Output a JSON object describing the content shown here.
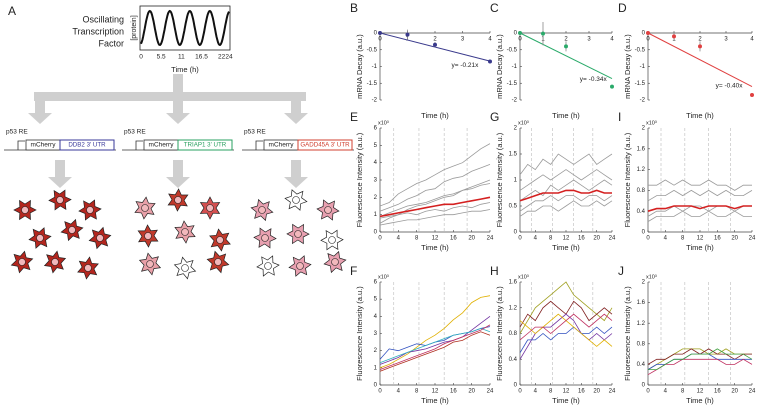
{
  "diagram": {
    "letter": "A",
    "title_lines": [
      "Oscillating",
      "Transcription",
      "Factor"
    ],
    "inset_ylabel": "[protein]",
    "inset_xlabel": "Time (h)",
    "inset_xticks": [
      0,
      5.5,
      11,
      16.5,
      22,
      24
    ],
    "constructs": [
      {
        "promoter": "p53 RE",
        "reporter": "mCherry",
        "utr": "DDB2 3' UTR",
        "color": "#3a3a9a"
      },
      {
        "promoter": "p53 RE",
        "reporter": "mCherry",
        "utr": "TRIAP1 3' UTR",
        "color": "#2aa060"
      },
      {
        "promoter": "p53 RE",
        "reporter": "mCherry",
        "utr": "GADD45A 3' UTR",
        "color": "#d04030"
      }
    ]
  },
  "chart_data": [
    {
      "type": "scatter",
      "panel": "B",
      "ylabel": "mRNA Decay (a.u.)",
      "xlabel": "Time (h)",
      "x": [
        0,
        1,
        2,
        4
      ],
      "values": [
        0,
        -0.05,
        -0.35,
        -0.85
      ],
      "errors": [
        0.05,
        0.15,
        0.08,
        0.05
      ],
      "color": "#3a3a8c",
      "fit_slope": -0.21,
      "annotation": "y= -0.21x",
      "xlim": [
        0,
        4
      ],
      "ylim": [
        -2,
        0
      ],
      "xticks": [
        0,
        1,
        2,
        3,
        4
      ],
      "yticks": [
        0,
        -0.5,
        -1,
        -1.5,
        -2
      ]
    },
    {
      "type": "scatter",
      "panel": "C",
      "ylabel": "mRNA Decay (a.u.)",
      "xlabel": "Time (h)",
      "x": [
        0,
        1,
        2,
        4
      ],
      "values": [
        0,
        -0.02,
        -0.4,
        -1.6
      ],
      "errors": [
        0.05,
        0.35,
        0.15,
        0.05
      ],
      "color": "#2aaa6a",
      "fit_slope": -0.34,
      "annotation": "y= -0.34x",
      "xlim": [
        0,
        4
      ],
      "ylim": [
        -2,
        0
      ],
      "xticks": [
        0,
        1,
        2,
        3,
        4
      ],
      "yticks": [
        0,
        -0.5,
        -1,
        -1.5,
        -2
      ]
    },
    {
      "type": "scatter",
      "panel": "D",
      "ylabel": "mRNA Decay (a.u.)",
      "xlabel": "Time (h)",
      "x": [
        0,
        1,
        2,
        4
      ],
      "values": [
        0,
        -0.1,
        -0.4,
        -1.85
      ],
      "errors": [
        0.02,
        0.1,
        0.15,
        0.05
      ],
      "color": "#e04040",
      "fit_slope": -0.4,
      "annotation": "y= -0.40x",
      "xlim": [
        0,
        4
      ],
      "ylim": [
        -2,
        0
      ],
      "xticks": [
        0,
        1,
        2,
        3,
        4
      ],
      "yticks": [
        0,
        -0.5,
        -1,
        -1.5,
        -2
      ]
    },
    {
      "type": "line",
      "panel": "E",
      "ylabel": "Fluorescence Intensity (a.u.)",
      "xlabel": "Time (h)",
      "y_multiplier": "x10³",
      "x": [
        0,
        2,
        4,
        6,
        8,
        10,
        12,
        14,
        16,
        18,
        20,
        22,
        24
      ],
      "xlim": [
        0,
        24
      ],
      "ylim": [
        0,
        6
      ],
      "xticks": [
        0,
        4,
        8,
        12,
        16,
        20,
        24
      ],
      "yticks": [
        0,
        1,
        2,
        3,
        4,
        5,
        6
      ],
      "vlines": [
        3,
        8.5,
        14,
        19
      ],
      "series": [
        {
          "color": "#9a9a9a",
          "values": [
            0.5,
            0.8,
            1.0,
            1.3,
            1.5,
            1.6,
            1.8,
            2.0,
            2.1,
            2.4,
            2.6,
            2.8,
            3.0
          ]
        },
        {
          "color": "#9a9a9a",
          "values": [
            1.5,
            1.7,
            2.2,
            2.5,
            2.8,
            3.0,
            3.3,
            3.6,
            3.8,
            4.0,
            4.4,
            4.8,
            5.1
          ]
        },
        {
          "color": "#9a9a9a",
          "values": [
            0.8,
            0.9,
            1.0,
            1.1,
            1.0,
            1.2,
            1.3,
            1.2,
            1.4,
            1.5,
            1.4,
            1.6,
            1.7
          ]
        },
        {
          "color": "#9a9a9a",
          "values": [
            0.4,
            0.5,
            0.6,
            0.7,
            0.7,
            0.8,
            0.9,
            1.0,
            1.0,
            1.1,
            1.2,
            1.2,
            1.3
          ]
        },
        {
          "color": "#9a9a9a",
          "values": [
            1.2,
            1.4,
            1.6,
            1.9,
            2.1,
            2.4,
            2.5,
            2.9,
            3.1,
            3.2,
            3.5,
            3.7,
            3.9
          ]
        },
        {
          "color": "#9a9a9a",
          "values": [
            0.9,
            1.1,
            1.3,
            1.5,
            1.6,
            1.7,
            1.9,
            2.1,
            2.2,
            2.4,
            2.5,
            2.7,
            2.8
          ]
        },
        {
          "color": "#d42020",
          "values": [
            0.9,
            1.0,
            1.1,
            1.2,
            1.3,
            1.4,
            1.5,
            1.6,
            1.6,
            1.7,
            1.8,
            1.9,
            2.0
          ]
        }
      ]
    },
    {
      "type": "line",
      "panel": "G",
      "ylabel": "Fluorescence Intensity (a.u.)",
      "xlabel": "Time (h)",
      "y_multiplier": "x10³",
      "x": [
        0,
        2,
        4,
        6,
        8,
        10,
        12,
        14,
        16,
        18,
        20,
        22,
        24
      ],
      "xlim": [
        0,
        24
      ],
      "ylim": [
        0,
        2
      ],
      "xticks": [
        0,
        4,
        8,
        12,
        16,
        20,
        24
      ],
      "yticks": [
        0,
        0.5,
        1,
        1.5,
        2
      ],
      "vlines": [
        3,
        8.5,
        14,
        19
      ],
      "series": [
        {
          "color": "#9a9a9a",
          "values": [
            0.6,
            0.7,
            0.8,
            0.7,
            0.9,
            0.8,
            0.9,
            1.0,
            0.9,
            0.8,
            0.9,
            1.0,
            0.9
          ]
        },
        {
          "color": "#9a9a9a",
          "values": [
            1.1,
            1.3,
            1.2,
            1.4,
            1.3,
            1.5,
            1.4,
            1.3,
            1.4,
            1.5,
            1.3,
            1.4,
            1.5
          ]
        },
        {
          "color": "#9a9a9a",
          "values": [
            0.3,
            0.4,
            0.4,
            0.5,
            0.5,
            0.4,
            0.5,
            0.6,
            0.5,
            0.5,
            0.6,
            0.5,
            0.6
          ]
        },
        {
          "color": "#9a9a9a",
          "values": [
            0.8,
            0.9,
            1.0,
            1.1,
            1.0,
            1.1,
            1.2,
            1.1,
            1.0,
            1.1,
            1.2,
            1.1,
            1.0
          ]
        },
        {
          "color": "#9a9a9a",
          "values": [
            0.4,
            0.5,
            0.6,
            0.6,
            0.7,
            0.6,
            0.7,
            0.7,
            0.6,
            0.7,
            0.7,
            0.6,
            0.7
          ]
        },
        {
          "color": "#d42020",
          "values": [
            0.6,
            0.65,
            0.7,
            0.75,
            0.75,
            0.75,
            0.8,
            0.8,
            0.75,
            0.75,
            0.8,
            0.75,
            0.75
          ]
        }
      ]
    },
    {
      "type": "line",
      "panel": "I",
      "ylabel": "Fluorescence Intensity (a.u.)",
      "xlabel": "Time (h)",
      "y_multiplier": "x10³",
      "x": [
        0,
        2,
        4,
        6,
        8,
        10,
        12,
        14,
        16,
        18,
        20,
        22,
        24
      ],
      "xlim": [
        0,
        24
      ],
      "ylim": [
        0,
        2
      ],
      "xticks": [
        0,
        4,
        8,
        12,
        16,
        20,
        24
      ],
      "yticks": [
        0,
        0.4,
        0.8,
        1.2,
        1.6,
        2
      ],
      "vlines": [
        3,
        8.5,
        14,
        19
      ],
      "series": [
        {
          "color": "#9a9a9a",
          "values": [
            0.3,
            0.4,
            0.4,
            0.5,
            0.4,
            0.5,
            0.5,
            0.4,
            0.5,
            0.5,
            0.4,
            0.5,
            0.5
          ]
        },
        {
          "color": "#9a9a9a",
          "values": [
            0.6,
            0.7,
            0.7,
            0.8,
            0.7,
            0.8,
            0.7,
            0.8,
            0.7,
            0.8,
            0.7,
            0.7,
            0.8
          ]
        },
        {
          "color": "#9a9a9a",
          "values": [
            0.2,
            0.3,
            0.3,
            0.3,
            0.4,
            0.3,
            0.3,
            0.4,
            0.3,
            0.3,
            0.4,
            0.3,
            0.3
          ]
        },
        {
          "color": "#9a9a9a",
          "values": [
            0.9,
            0.9,
            1.0,
            0.9,
            1.0,
            0.9,
            0.9,
            1.0,
            0.9,
            0.9,
            0.8,
            0.9,
            0.9
          ]
        },
        {
          "color": "#d42020",
          "values": [
            0.4,
            0.45,
            0.45,
            0.5,
            0.5,
            0.5,
            0.45,
            0.5,
            0.5,
            0.5,
            0.45,
            0.5,
            0.5
          ]
        }
      ]
    },
    {
      "type": "line",
      "panel": "F",
      "ylabel": "Fluorescence Intensity (a.u.)",
      "xlabel": "Time (h)",
      "y_multiplier": "x10³",
      "x": [
        0,
        2,
        4,
        6,
        8,
        10,
        12,
        14,
        16,
        18,
        20,
        22,
        24
      ],
      "xlim": [
        0,
        24
      ],
      "ylim": [
        0,
        6
      ],
      "xticks": [
        0,
        4,
        8,
        12,
        16,
        20,
        24
      ],
      "yticks": [
        0,
        1,
        2,
        3,
        4,
        5,
        6
      ],
      "vlines": [
        3,
        8.5,
        14,
        19
      ],
      "series": [
        {
          "color": "#e0b000",
          "values": [
            1.0,
            1.2,
            1.5,
            1.8,
            2.2,
            2.6,
            2.9,
            3.3,
            3.8,
            4.2,
            4.8,
            5.1,
            5.2
          ]
        },
        {
          "color": "#7030a0",
          "values": [
            1.2,
            1.4,
            1.6,
            1.9,
            2.0,
            2.1,
            2.3,
            2.5,
            2.6,
            2.8,
            3.2,
            3.6,
            4.0
          ]
        },
        {
          "color": "#3050c0",
          "values": [
            1.5,
            2.1,
            2.0,
            2.2,
            2.4,
            2.3,
            2.5,
            2.6,
            2.9,
            3.0,
            3.1,
            3.3,
            3.4
          ]
        },
        {
          "color": "#30b0c0",
          "values": [
            1.3,
            1.5,
            1.7,
            1.9,
            2.1,
            2.3,
            2.5,
            2.7,
            2.9,
            3.0,
            3.1,
            3.3,
            3.1
          ]
        },
        {
          "color": "#c03060",
          "values": [
            0.9,
            1.1,
            1.3,
            1.5,
            1.7,
            1.9,
            2.1,
            2.4,
            2.6,
            2.8,
            3.0,
            3.2,
            3.5
          ]
        },
        {
          "color": "#b03020",
          "values": [
            0.8,
            1.0,
            1.2,
            1.4,
            1.6,
            1.8,
            2.0,
            2.2,
            2.5,
            2.6,
            2.9,
            3.1,
            2.9
          ]
        }
      ]
    },
    {
      "type": "line",
      "panel": "H",
      "ylabel": "Fluorescence Intensity (a.u.)",
      "xlabel": "Time (h)",
      "y_multiplier": "x10³",
      "x": [
        0,
        2,
        4,
        6,
        8,
        10,
        12,
        14,
        16,
        18,
        20,
        22,
        24
      ],
      "xlim": [
        0,
        24
      ],
      "ylim": [
        0,
        1.6
      ],
      "xticks": [
        0,
        4,
        8,
        12,
        16,
        20,
        24
      ],
      "yticks": [
        0,
        0.4,
        0.8,
        1.2,
        1.6
      ],
      "vlines": [
        3,
        8.5,
        14,
        19
      ],
      "series": [
        {
          "color": "#a0a020",
          "values": [
            0.8,
            1.0,
            1.2,
            1.3,
            1.4,
            1.5,
            1.6,
            1.4,
            1.3,
            1.2,
            1.1,
            1.0,
            1.2
          ]
        },
        {
          "color": "#802020",
          "values": [
            0.9,
            1.1,
            1.0,
            1.2,
            1.3,
            1.2,
            1.1,
            1.3,
            1.2,
            1.0,
            1.1,
            1.2,
            1.1
          ]
        },
        {
          "color": "#7030a0",
          "values": [
            0.4,
            0.6,
            0.8,
            0.9,
            0.9,
            1.0,
            1.1,
            1.0,
            0.8,
            0.7,
            0.8,
            0.7,
            0.8
          ]
        },
        {
          "color": "#3050c0",
          "values": [
            0.5,
            0.7,
            0.7,
            0.8,
            0.7,
            0.8,
            0.8,
            0.9,
            0.8,
            0.8,
            0.9,
            0.8,
            0.9
          ]
        },
        {
          "color": "#e0b000",
          "values": [
            1.0,
            0.9,
            0.8,
            0.9,
            1.0,
            1.1,
            1.0,
            0.9,
            0.8,
            0.7,
            0.6,
            0.7,
            0.6
          ]
        },
        {
          "color": "#c03060",
          "values": [
            0.7,
            0.8,
            0.9,
            0.9,
            0.8,
            0.9,
            1.0,
            1.1,
            1.0,
            0.9,
            1.0,
            1.1,
            1.0
          ]
        }
      ]
    },
    {
      "type": "line",
      "panel": "J",
      "ylabel": "Fluorescence Intensity (a.u.)",
      "xlabel": "Time (h)",
      "y_multiplier": "x10³",
      "x": [
        0,
        2,
        4,
        6,
        8,
        10,
        12,
        14,
        16,
        18,
        20,
        22,
        24
      ],
      "xlim": [
        0,
        24
      ],
      "ylim": [
        0,
        2
      ],
      "xticks": [
        0,
        4,
        8,
        12,
        16,
        20,
        24
      ],
      "yticks": [
        0,
        0.4,
        0.8,
        1.2,
        1.6,
        2
      ],
      "vlines": [
        3,
        8.5,
        14,
        19
      ],
      "series": [
        {
          "color": "#a0a020",
          "values": [
            0.3,
            0.4,
            0.5,
            0.6,
            0.7,
            0.7,
            0.7,
            0.6,
            0.6,
            0.7,
            0.6,
            0.6,
            0.6
          ]
        },
        {
          "color": "#802020",
          "values": [
            0.4,
            0.5,
            0.5,
            0.6,
            0.6,
            0.7,
            0.6,
            0.7,
            0.6,
            0.6,
            0.5,
            0.6,
            0.6
          ]
        },
        {
          "color": "#3050c0",
          "values": [
            0.3,
            0.4,
            0.4,
            0.5,
            0.5,
            0.6,
            0.6,
            0.6,
            0.5,
            0.5,
            0.5,
            0.5,
            0.5
          ]
        },
        {
          "color": "#c03060",
          "values": [
            0.2,
            0.3,
            0.4,
            0.4,
            0.5,
            0.5,
            0.5,
            0.5,
            0.5,
            0.4,
            0.4,
            0.5,
            0.4
          ]
        },
        {
          "color": "#40a040",
          "values": [
            0.3,
            0.3,
            0.4,
            0.5,
            0.5,
            0.6,
            0.6,
            0.6,
            0.7,
            0.6,
            0.6,
            0.6,
            0.5
          ]
        }
      ]
    }
  ]
}
